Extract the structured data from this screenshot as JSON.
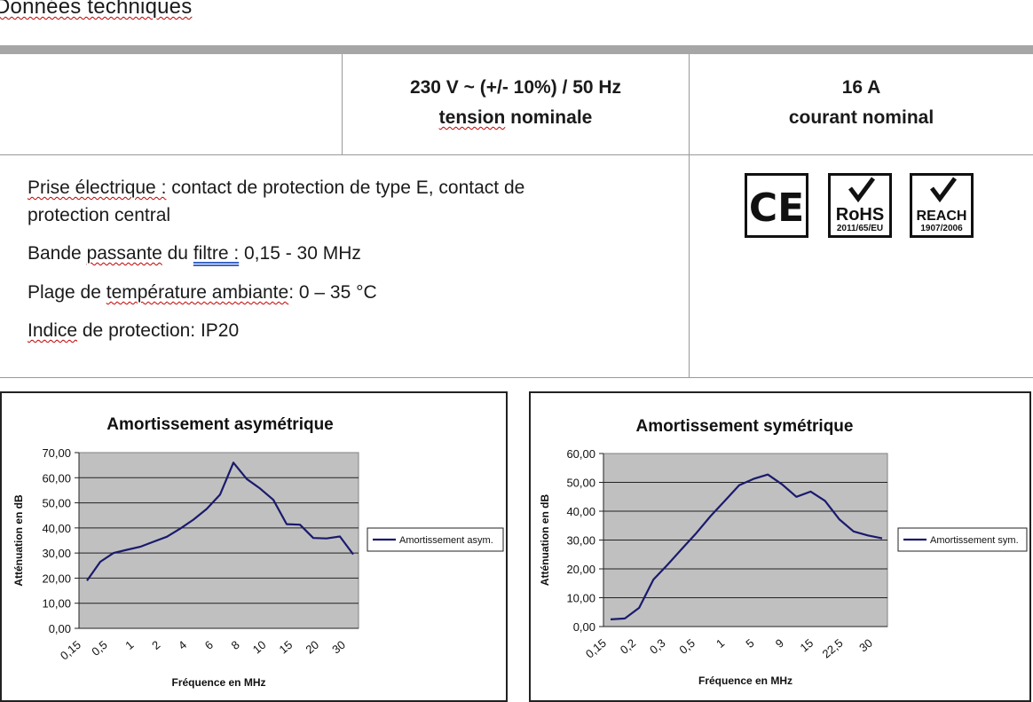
{
  "title": "Données techniques",
  "ratings": {
    "voltage_value": "230 V ~ (+/- 10%) / 50 Hz",
    "voltage_label_word": "tension",
    "voltage_label_rest": " nominale",
    "current_value": "16 A",
    "current_label": "courant nominal"
  },
  "specs": {
    "plug_label": "Prise électrique :",
    "plug_value_1": " contact de protection de type E, contact de",
    "plug_value_2": "protection central",
    "filter_label_w1": "Bande ",
    "filter_label_w2": "passante",
    "filter_label_w3": " du ",
    "filter_label_w4": "filtre :",
    "filter_value": " 0,15 - 30 MHz",
    "temp_label_w1": "Plage de ",
    "temp_label_w2": "température ambiante",
    "temp_value": ": 0 – 35 °C",
    "ip_label_w1": "Indice",
    "ip_label_w2": " de protection: IP20"
  },
  "certifications": {
    "ce": "CE",
    "rohs": "RoHS",
    "rohs_code": "2011/65/EU",
    "reach": "REACH",
    "reach_code": "1907/2006",
    "colors": {
      "border": "#111111",
      "check": "#111111"
    }
  },
  "chart_data": [
    {
      "type": "line",
      "title": "Amortissement asymétrique",
      "xlabel": "Fréquence en MHz",
      "ylabel": "Atténuation en dB",
      "x_tick_labels": [
        "0,15",
        "0,5",
        "1",
        "2",
        "4",
        "6",
        "8",
        "10",
        "15",
        "20",
        "30"
      ],
      "y_tick_labels": [
        "0,00",
        "10,00",
        "20,00",
        "30,00",
        "40,00",
        "50,00",
        "60,00",
        "70,00"
      ],
      "ylim": [
        0,
        70
      ],
      "grid": true,
      "legend": "right",
      "colors": {
        "plot_bg": "#c0c0c0",
        "line": "#1a1a6e"
      },
      "series": [
        {
          "name": "Amortissement asym.",
          "values": [
            19,
            26.5,
            30,
            31.3,
            32.5,
            34.5,
            36.5,
            39.7,
            43.3,
            47.6,
            53.3,
            66,
            59.5,
            55.7,
            51.2,
            41.5,
            41.3,
            36,
            35.8,
            36.6,
            29.5
          ]
        }
      ]
    },
    {
      "type": "line",
      "title": "Amortissement symétrique",
      "xlabel": "Fréquence en MHz",
      "ylabel": "Atténuation en dB",
      "x_tick_labels": [
        "0,15",
        "0,2",
        "0,3",
        "0,5",
        "1",
        "5",
        "9",
        "15",
        "22,5",
        "30"
      ],
      "y_tick_labels": [
        "0,00",
        "10,00",
        "20,00",
        "30,00",
        "40,00",
        "50,00",
        "60,00"
      ],
      "ylim": [
        0,
        60
      ],
      "grid": true,
      "legend": "right",
      "colors": {
        "plot_bg": "#c0c0c0",
        "line": "#1a1a6e"
      },
      "series": [
        {
          "name": "Amortissement sym.",
          "values": [
            2.5,
            2.8,
            6.5,
            16.3,
            21.5,
            27,
            32.4,
            38.3,
            43.6,
            49,
            51.2,
            52.7,
            49.3,
            45,
            46.8,
            43.6,
            37.2,
            33,
            31.6,
            30.6
          ]
        }
      ]
    }
  ]
}
